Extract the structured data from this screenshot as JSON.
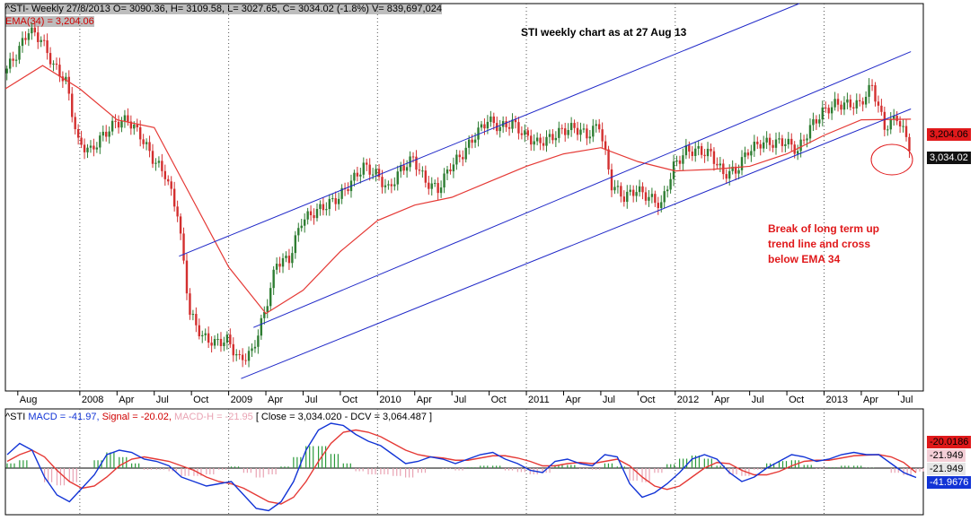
{
  "header": {
    "price_line": "^STI- Weekly 27/8/2013 O= 3090.36, H= 3109.58, L= 3027.65, C= 3034.02 (-1.8%) V= 839,697,024",
    "ema_line": "EMA(34) = 3,204.06"
  },
  "annotations": {
    "title": "STI weekly chart as at 27 Aug 13",
    "note_lines": [
      "Break of long term up",
      "trend line and cross",
      "below EMA 34"
    ]
  },
  "price_tags": {
    "ema": "3,204.06",
    "close": "3,034.02"
  },
  "macd_header": {
    "sym": "^STI",
    "macd_text": "MACD = -41.97,",
    "signal_text": "Signal = -20.02,",
    "hist_text": "MACD-H = -21.95",
    "rest_text": "[ Close = 3,034.020  -  DCV = 3,064.487 ]"
  },
  "macd_tags": {
    "signal": "-20.0186",
    "hist": "-21.949",
    "hist2": "-21.949",
    "macd": "-41.9676"
  },
  "colors": {
    "candle_up": "#2e7d32",
    "candle_down": "#d32f2f",
    "ema": "#e53935",
    "channel": "#1f28c8",
    "macd": "#1234d6",
    "signal": "#e53935",
    "hist_pos": "#2b9a3b",
    "hist_neg": "#e9a3b3"
  },
  "chart_data": {
    "type": "line",
    "title": "STI weekly chart as at 27 Aug 13",
    "xlabel": "",
    "ylabel": "",
    "x_ticks": [
      "Aug",
      "2008",
      "Apr",
      "Jul",
      "Oct",
      "2009",
      "Apr",
      "Jul",
      "Oct",
      "2010",
      "Apr",
      "Jul",
      "Oct",
      "2011",
      "Apr",
      "Jul",
      "Oct",
      "2012",
      "Apr",
      "Jul",
      "Oct",
      "2013",
      "Apr",
      "Jul"
    ],
    "ylim": [
      1450,
      3950
    ],
    "series": [
      {
        "name": "^STI",
        "x": [
          "2007-07",
          "2007-08",
          "2007-09",
          "2007-10",
          "2007-11",
          "2007-12",
          "2008-01",
          "2008-02",
          "2008-03",
          "2008-04",
          "2008-05",
          "2008-06",
          "2008-07",
          "2008-08",
          "2008-09",
          "2008-10",
          "2008-11",
          "2008-12",
          "2009-01",
          "2009-02",
          "2009-03",
          "2009-04",
          "2009-05",
          "2009-06",
          "2009-07",
          "2009-08",
          "2009-09",
          "2009-10",
          "2009-11",
          "2009-12",
          "2010-01",
          "2010-02",
          "2010-03",
          "2010-04",
          "2010-05",
          "2010-06",
          "2010-07",
          "2010-08",
          "2010-09",
          "2010-10",
          "2010-11",
          "2010-12",
          "2011-01",
          "2011-02",
          "2011-03",
          "2011-04",
          "2011-05",
          "2011-06",
          "2011-07",
          "2011-08",
          "2011-09",
          "2011-10",
          "2011-11",
          "2011-12",
          "2012-01",
          "2012-02",
          "2012-03",
          "2012-04",
          "2012-05",
          "2012-06",
          "2012-07",
          "2012-08",
          "2012-09",
          "2012-10",
          "2012-11",
          "2012-12",
          "2013-01",
          "2013-02",
          "2013-03",
          "2013-04",
          "2013-05",
          "2013-06",
          "2013-07",
          "2013-08"
        ],
        "values": [
          3500,
          3620,
          3780,
          3720,
          3550,
          3450,
          3050,
          3000,
          3100,
          3180,
          3200,
          3100,
          2950,
          2850,
          2600,
          1950,
          1800,
          1760,
          1780,
          1650,
          1700,
          1950,
          2280,
          2300,
          2550,
          2600,
          2650,
          2700,
          2800,
          2900,
          2850,
          2750,
          2880,
          2950,
          2800,
          2750,
          2900,
          2980,
          3100,
          3200,
          3150,
          3180,
          3100,
          3050,
          3080,
          3130,
          3150,
          3100,
          3170,
          2780,
          2700,
          2750,
          2700,
          2650,
          2900,
          3000,
          3000,
          2980,
          2850,
          2870,
          3000,
          3050,
          3050,
          3060,
          3000,
          3150,
          3250,
          3300,
          3300,
          3300,
          3420,
          3150,
          3220,
          3034
        ]
      },
      {
        "name": "EMA(34)",
        "x": [
          "2007-07",
          "2007-10",
          "2008-01",
          "2008-04",
          "2008-07",
          "2008-10",
          "2009-01",
          "2009-04",
          "2009-07",
          "2009-10",
          "2010-01",
          "2010-04",
          "2010-07",
          "2010-10",
          "2011-01",
          "2011-04",
          "2011-07",
          "2011-10",
          "2012-01",
          "2012-04",
          "2012-07",
          "2012-10",
          "2013-01",
          "2013-04",
          "2013-08"
        ],
        "values": [
          3400,
          3550,
          3400,
          3200,
          3150,
          2700,
          2250,
          1950,
          2100,
          2350,
          2550,
          2650,
          2700,
          2800,
          2900,
          2980,
          3020,
          2930,
          2870,
          2880,
          2900,
          2980,
          3100,
          3200,
          3204
        ]
      }
    ],
    "channel_lines": [
      {
        "from": [
          "2008-09",
          2320
        ],
        "to": [
          "2012-11",
          3950
        ]
      },
      {
        "from": [
          "2009-03",
          1860
        ],
        "to": [
          "2013-08",
          3640
        ]
      },
      {
        "from": [
          "2009-02",
          1530
        ],
        "to": [
          "2013-08",
          3270
        ]
      }
    ],
    "macd": {
      "macd": -41.97,
      "signal": -20.02,
      "histogram": -21.95,
      "close": 3034.02,
      "dcv": 3064.487,
      "ylim": [
        -200,
        200
      ],
      "macd_series": [
        60,
        110,
        80,
        -40,
        -120,
        -150,
        -90,
        -30,
        60,
        80,
        70,
        40,
        30,
        10,
        -40,
        -60,
        -80,
        -70,
        -60,
        -120,
        -180,
        -190,
        -150,
        -60,
        80,
        170,
        200,
        190,
        150,
        120,
        100,
        60,
        20,
        30,
        50,
        40,
        20,
        40,
        60,
        70,
        40,
        20,
        -10,
        -20,
        30,
        40,
        20,
        10,
        60,
        50,
        -70,
        -130,
        -110,
        -70,
        -20,
        40,
        60,
        40,
        -20,
        -60,
        -40,
        0,
        30,
        60,
        50,
        30,
        40,
        60,
        70,
        60,
        60,
        20,
        -20,
        -42
      ],
      "signal_series": [
        30,
        60,
        80,
        50,
        -10,
        -60,
        -90,
        -80,
        -40,
        10,
        40,
        50,
        40,
        30,
        10,
        -10,
        -40,
        -60,
        -70,
        -90,
        -120,
        -150,
        -160,
        -130,
        -60,
        30,
        110,
        160,
        170,
        160,
        140,
        110,
        80,
        60,
        50,
        45,
        35,
        35,
        45,
        55,
        55,
        45,
        30,
        10,
        10,
        20,
        25,
        20,
        30,
        40,
        10,
        -40,
        -80,
        -95,
        -80,
        -40,
        0,
        25,
        20,
        -10,
        -30,
        -30,
        -15,
        10,
        30,
        35,
        35,
        45,
        55,
        58,
        60,
        50,
        25,
        -20
      ]
    }
  }
}
